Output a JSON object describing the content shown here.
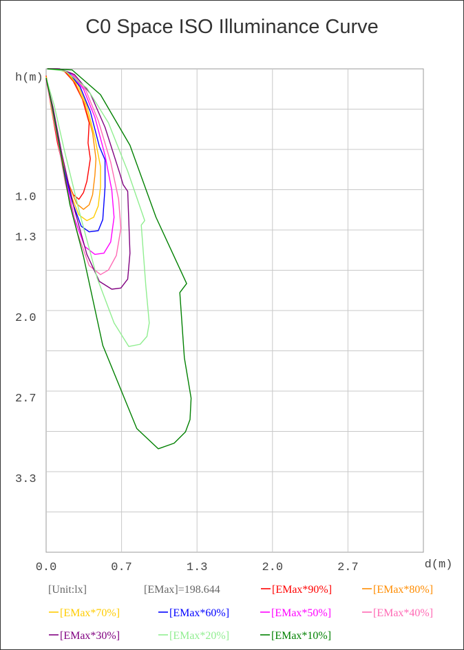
{
  "chart_data": {
    "type": "line",
    "title": "C0 Space ISO Illuminance Curve",
    "xlabel": "d(m)",
    "ylabel": "h(m)",
    "x_tick_labels": [
      "0.0",
      "0.7",
      "1.3",
      "2.0",
      "2.7"
    ],
    "y_tick_labels": [
      "1.0",
      "1.3",
      "2.0",
      "2.7",
      "3.3"
    ],
    "xlim": [
      0,
      3.33
    ],
    "ylim": [
      0,
      4.3
    ],
    "x_gridlines": 5,
    "y_gridlines": 12,
    "grid": true,
    "legend_position": "bottom",
    "unit_label": "[Unit:lx]",
    "emax_label": "[EMax]=198.644",
    "series": [
      {
        "name": "[EMax*90%]",
        "color": "#ff0000",
        "x": [
          0.01,
          0.08,
          0.16,
          0.24,
          0.32,
          0.38,
          0.37,
          0.39,
          0.36,
          0.33,
          0.29,
          0.24,
          0.17,
          0.1,
          0.04,
          0.0
        ],
        "y": [
          0.0,
          0.0,
          0.02,
          0.11,
          0.27,
          0.48,
          0.66,
          0.8,
          1.0,
          1.1,
          1.16,
          1.12,
          0.96,
          0.66,
          0.32,
          0.06
        ]
      },
      {
        "name": "[EMax*80%]",
        "color": "#ff8c00",
        "x": [
          0.01,
          0.09,
          0.18,
          0.26,
          0.34,
          0.41,
          0.44,
          0.43,
          0.41,
          0.38,
          0.33,
          0.27,
          0.2,
          0.12,
          0.05,
          0.0
        ],
        "y": [
          0.0,
          0.0,
          0.03,
          0.13,
          0.31,
          0.57,
          0.8,
          0.95,
          1.12,
          1.21,
          1.25,
          1.2,
          1.03,
          0.72,
          0.36,
          0.07
        ]
      },
      {
        "name": "[EMax*70%]",
        "color": "#ffcc00",
        "x": [
          0.01,
          0.09,
          0.19,
          0.28,
          0.36,
          0.43,
          0.48,
          0.48,
          0.46,
          0.42,
          0.36,
          0.29,
          0.21,
          0.13,
          0.05,
          0.0
        ],
        "y": [
          0.0,
          0.0,
          0.03,
          0.14,
          0.33,
          0.61,
          0.87,
          1.05,
          1.22,
          1.32,
          1.35,
          1.3,
          1.1,
          0.76,
          0.38,
          0.07
        ]
      },
      {
        "name": "[EMax*60%]",
        "color": "#0000ff",
        "x": [
          0.01,
          0.1,
          0.2,
          0.3,
          0.39,
          0.47,
          0.52,
          0.52,
          0.5,
          0.46,
          0.38,
          0.31,
          0.23,
          0.14,
          0.06,
          0.0
        ],
        "y": [
          0.0,
          0.0,
          0.03,
          0.16,
          0.38,
          0.69,
          0.81,
          1.05,
          1.34,
          1.44,
          1.45,
          1.4,
          1.18,
          0.82,
          0.41,
          0.08
        ]
      },
      {
        "name": "[EMax*50%]",
        "color": "#ff00ff",
        "x": [
          0.01,
          0.1,
          0.22,
          0.33,
          0.43,
          0.52,
          0.58,
          0.6,
          0.57,
          0.51,
          0.43,
          0.34,
          0.25,
          0.16,
          0.07,
          0.0
        ],
        "y": [
          0.0,
          0.0,
          0.04,
          0.18,
          0.43,
          0.77,
          1.08,
          1.32,
          1.54,
          1.64,
          1.65,
          1.58,
          1.33,
          0.92,
          0.46,
          0.09
        ]
      },
      {
        "name": "[EMax*40%]",
        "color": "#ff69b4",
        "x": [
          0.01,
          0.11,
          0.23,
          0.35,
          0.46,
          0.57,
          0.64,
          0.66,
          0.62,
          0.55,
          0.48,
          0.38,
          0.28,
          0.17,
          0.08,
          0.0
        ],
        "y": [
          0.0,
          0.0,
          0.04,
          0.19,
          0.46,
          0.83,
          1.16,
          1.42,
          1.66,
          1.79,
          1.83,
          1.75,
          1.47,
          1.02,
          0.51,
          0.1
        ]
      },
      {
        "name": "[EMax*30%]",
        "color": "#800080",
        "x": [
          0.01,
          0.12,
          0.25,
          0.39,
          0.52,
          0.65,
          0.68,
          0.72,
          0.74,
          0.72,
          0.66,
          0.58,
          0.47,
          0.36,
          0.25,
          0.14,
          0.06,
          0.0
        ],
        "y": [
          0.0,
          0.0,
          0.05,
          0.22,
          0.52,
          0.93,
          1.03,
          1.09,
          1.64,
          1.87,
          1.95,
          1.96,
          1.89,
          1.65,
          1.25,
          0.76,
          0.34,
          0.09
        ]
      },
      {
        "name": "[EMax*20%]",
        "color": "#90ee90",
        "x": [
          0.01,
          0.17,
          0.36,
          0.55,
          0.72,
          0.87,
          0.84,
          0.88,
          0.91,
          0.89,
          0.83,
          0.73,
          0.6,
          0.45,
          0.3,
          0.16,
          0.07,
          0.0
        ],
        "y": [
          0.0,
          0.02,
          0.17,
          0.48,
          0.91,
          1.35,
          1.39,
          1.93,
          2.26,
          2.38,
          2.45,
          2.47,
          2.26,
          1.86,
          1.3,
          0.72,
          0.32,
          0.08
        ]
      },
      {
        "name": "[EMax*10%]",
        "color": "#008000",
        "x": [
          0.01,
          0.23,
          0.48,
          0.74,
          0.97,
          1.24,
          1.18,
          1.22,
          1.28,
          1.27,
          1.23,
          1.13,
          0.99,
          0.8,
          0.5,
          0.33,
          0.21,
          0.12,
          0.05,
          0.0
        ],
        "y": [
          0.0,
          0.01,
          0.23,
          0.68,
          1.32,
          1.91,
          1.99,
          2.57,
          2.93,
          3.12,
          3.23,
          3.33,
          3.38,
          3.2,
          2.46,
          1.67,
          1.21,
          0.7,
          0.32,
          0.08
        ]
      }
    ]
  }
}
